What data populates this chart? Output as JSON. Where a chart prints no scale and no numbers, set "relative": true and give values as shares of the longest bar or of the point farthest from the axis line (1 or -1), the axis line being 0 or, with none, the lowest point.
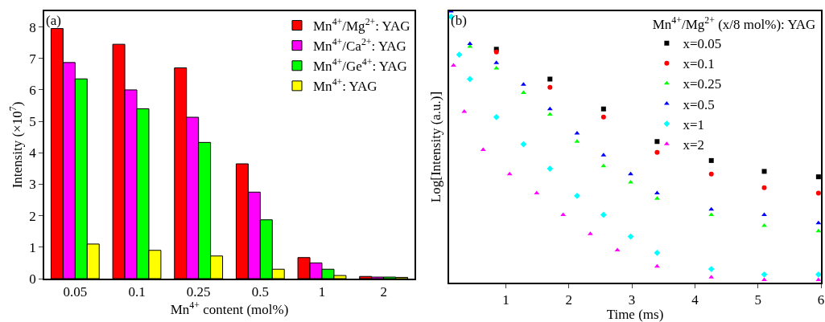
{
  "chart_data": [
    {
      "type": "bar",
      "ylabel": "Intensity (×10$^{7}$)",
      "xlabel": "Mn$^{4+}$ content (mol%)",
      "annotations": [
        "(a)"
      ],
      "categories": [
        "0.05",
        "0.1",
        "0.25",
        "0.5",
        "1",
        "2"
      ],
      "ylim": [
        0,
        8.5
      ],
      "yticks": [
        0,
        1,
        2,
        3,
        4,
        5,
        6,
        7,
        8
      ],
      "grid": false,
      "legend": "top right",
      "series": [
        {
          "name": "Mn$^{4+}$/Mg$^{2+}$: YAG",
          "color": "#ff0000",
          "values": [
            7.95,
            7.45,
            6.7,
            3.65,
            0.67,
            0.07
          ]
        },
        {
          "name": "Mn$^{4+}$/Ca$^{2+}$: YAG",
          "color": "#ff00ff",
          "values": [
            6.87,
            6.0,
            5.13,
            2.75,
            0.5,
            0.05
          ]
        },
        {
          "name": "Mn$^{4+}$/Ge$^{4+}$: YAG",
          "color": "#00ff00",
          "values": [
            6.35,
            5.4,
            4.33,
            1.87,
            0.3,
            0.05
          ]
        },
        {
          "name": "Mn$^{4+}$: YAG",
          "color": "#ffff00",
          "values": [
            1.1,
            0.9,
            0.72,
            0.3,
            0.1,
            0.04
          ]
        }
      ]
    },
    {
      "type": "scatter",
      "relative": true,
      "xlabel": "Time (ms)",
      "ylabel": "Log[Intensity (a.u.)]",
      "legend_title": "Mn$^{4+}$/Mg$^{2+}$ (x/8 mol%): YAG",
      "annotations": [
        "(b)"
      ],
      "xlim": [
        0.1,
        6
      ],
      "xticks": [
        1,
        2,
        3,
        4,
        5,
        6
      ],
      "grid": false,
      "legend": "top right",
      "series": [
        {
          "name": "x=0.05",
          "color": "#000000",
          "marker": "square",
          "x": [
            0.85,
            1.7,
            2.55,
            3.4,
            4.26,
            5.1,
            5.96
          ],
          "values": [
            0.86,
            0.75,
            0.64,
            0.52,
            0.45,
            0.41,
            0.39
          ]
        },
        {
          "name": "x=0.1",
          "color": "#ff0000",
          "marker": "circle",
          "x": [
            0.85,
            1.7,
            2.55,
            3.4,
            4.26,
            5.1,
            5.96
          ],
          "values": [
            0.85,
            0.72,
            0.61,
            0.48,
            0.4,
            0.35,
            0.33
          ]
        },
        {
          "name": "x=0.25",
          "color": "#00ff00",
          "marker": "triangle",
          "x": [
            0.43,
            0.85,
            1.28,
            1.7,
            2.13,
            2.55,
            2.98,
            3.4,
            4.26,
            5.1,
            5.96
          ],
          "values": [
            0.87,
            0.79,
            0.7,
            0.62,
            0.52,
            0.43,
            0.37,
            0.31,
            0.25,
            0.21,
            0.19
          ]
        },
        {
          "name": "x=0.5",
          "color": "#0000ff",
          "marker": "triangle",
          "x": [
            0.13,
            0.43,
            0.85,
            1.28,
            1.7,
            2.13,
            2.55,
            2.98,
            3.4,
            4.26,
            5.1,
            5.96
          ],
          "values": [
            1.0,
            0.88,
            0.81,
            0.73,
            0.64,
            0.55,
            0.47,
            0.4,
            0.33,
            0.27,
            0.25,
            0.22
          ]
        },
        {
          "name": "x=1",
          "color": "#00ffff",
          "marker": "diamond",
          "x": [
            0.13,
            0.26,
            0.43,
            0.85,
            1.28,
            1.7,
            2.13,
            2.55,
            2.98,
            3.4,
            4.26,
            5.1,
            5.96
          ],
          "values": [
            0.98,
            0.84,
            0.75,
            0.61,
            0.51,
            0.42,
            0.32,
            0.25,
            0.17,
            0.11,
            0.05,
            0.03,
            0.03
          ]
        },
        {
          "name": "x=2",
          "color": "#ff00ff",
          "marker": "triangle",
          "x": [
            0.17,
            0.34,
            0.64,
            1.06,
            1.49,
            1.91,
            2.34,
            2.77,
            3.4,
            4.26,
            5.1,
            5.96
          ],
          "values": [
            0.8,
            0.63,
            0.49,
            0.4,
            0.33,
            0.25,
            0.18,
            0.12,
            0.06,
            0.02,
            0.01,
            0.01
          ]
        }
      ]
    }
  ]
}
